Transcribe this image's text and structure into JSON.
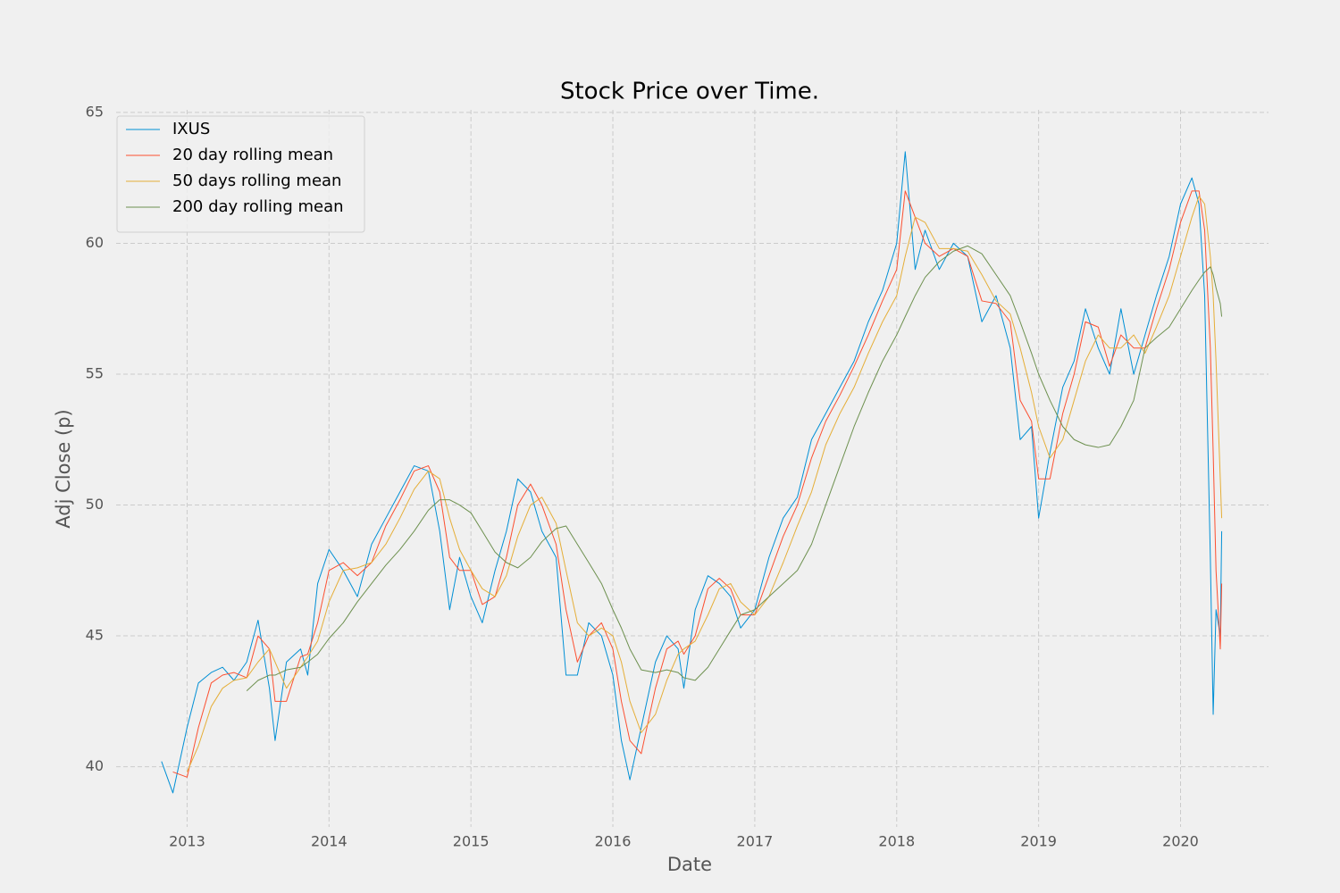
{
  "chart_data": {
    "type": "line",
    "title": "Stock Price over Time.",
    "x_label": "Date",
    "y_label": "Adj Close (p)",
    "x": [
      2012.82,
      2012.9,
      2013.0,
      2013.08,
      2013.17,
      2013.25,
      2013.33,
      2013.42,
      2013.5,
      2013.58,
      2013.62,
      2013.7,
      2013.8,
      2013.85,
      2013.92,
      2014.0,
      2014.1,
      2014.2,
      2014.3,
      2014.4,
      2014.5,
      2014.6,
      2014.7,
      2014.78,
      2014.85,
      2014.92,
      2015.0,
      2015.08,
      2015.17,
      2015.25,
      2015.33,
      2015.42,
      2015.5,
      2015.6,
      2015.67,
      2015.75,
      2015.83,
      2015.92,
      2016.0,
      2016.06,
      2016.12,
      2016.2,
      2016.3,
      2016.38,
      2016.46,
      2016.5,
      2016.58,
      2016.67,
      2016.75,
      2016.83,
      2016.9,
      2017.0,
      2017.1,
      2017.2,
      2017.3,
      2017.4,
      2017.5,
      2017.6,
      2017.7,
      2017.8,
      2017.9,
      2018.0,
      2018.06,
      2018.13,
      2018.2,
      2018.3,
      2018.4,
      2018.5,
      2018.6,
      2018.7,
      2018.8,
      2018.87,
      2018.95,
      2019.0,
      2019.08,
      2019.17,
      2019.25,
      2019.33,
      2019.42,
      2019.5,
      2019.58,
      2019.67,
      2019.75,
      2019.83,
      2019.92,
      2020.0,
      2020.08,
      2020.13,
      2020.17,
      2020.21,
      2020.23,
      2020.25,
      2020.28,
      2020.29
    ],
    "series": [
      {
        "name": "IXUS",
        "color": "#008fd5",
        "values": [
          40.2,
          39.0,
          41.5,
          43.2,
          43.6,
          43.8,
          43.3,
          44.0,
          45.6,
          43.0,
          41.0,
          44.0,
          44.5,
          43.5,
          47.0,
          48.3,
          47.5,
          46.5,
          48.5,
          49.5,
          50.5,
          51.5,
          51.3,
          49.0,
          46.0,
          48.0,
          46.5,
          45.5,
          47.5,
          49.0,
          51.0,
          50.5,
          49.0,
          48.0,
          43.5,
          43.5,
          45.5,
          45.0,
          43.5,
          41.0,
          39.5,
          41.5,
          44.0,
          45.0,
          44.5,
          43.0,
          46.0,
          47.3,
          47.0,
          46.5,
          45.3,
          46.0,
          48.0,
          49.5,
          50.3,
          52.5,
          53.5,
          54.5,
          55.5,
          57.0,
          58.2,
          60.0,
          63.5,
          59.0,
          60.5,
          59.0,
          60.0,
          59.5,
          57.0,
          58.0,
          56.0,
          52.5,
          53.0,
          49.5,
          52.0,
          54.5,
          55.5,
          57.5,
          56.0,
          55.0,
          57.5,
          55.0,
          56.5,
          58.0,
          59.5,
          61.5,
          62.5,
          61.5,
          58.0,
          48.0,
          42.0,
          46.0,
          45.0,
          49.0
        ]
      },
      {
        "name": "20 day rolling mean",
        "color": "#fc4f30",
        "values": [
          null,
          39.8,
          39.6,
          41.5,
          43.2,
          43.5,
          43.6,
          43.4,
          45.0,
          44.5,
          42.5,
          42.5,
          44.2,
          44.3,
          45.5,
          47.5,
          47.8,
          47.3,
          47.8,
          49.2,
          50.2,
          51.3,
          51.5,
          50.5,
          48.0,
          47.5,
          47.5,
          46.2,
          46.5,
          48.0,
          50.0,
          50.8,
          50.0,
          48.5,
          46.0,
          44.0,
          45.0,
          45.5,
          44.5,
          42.5,
          41.0,
          40.5,
          43.0,
          44.5,
          44.8,
          44.3,
          45.0,
          46.8,
          47.2,
          46.8,
          45.8,
          45.8,
          47.3,
          48.8,
          50.0,
          51.8,
          53.2,
          54.2,
          55.3,
          56.5,
          57.8,
          59.0,
          62.0,
          61.0,
          60.0,
          59.5,
          59.8,
          59.5,
          57.8,
          57.7,
          57.0,
          54.0,
          53.2,
          51.0,
          51.0,
          53.5,
          55.0,
          57.0,
          56.8,
          55.3,
          56.5,
          56.0,
          56.0,
          57.5,
          59.0,
          60.8,
          62.0,
          62.0,
          60.5,
          56.0,
          52.0,
          47.5,
          44.5,
          47.0
        ]
      },
      {
        "name": "50 days rolling mean",
        "color": "#e5ae38",
        "values": [
          null,
          null,
          39.8,
          40.8,
          42.3,
          43.0,
          43.3,
          43.4,
          44.0,
          44.5,
          44.0,
          43.0,
          43.8,
          44.2,
          44.8,
          46.3,
          47.5,
          47.6,
          47.8,
          48.5,
          49.5,
          50.6,
          51.3,
          51.0,
          49.5,
          48.3,
          47.5,
          46.8,
          46.5,
          47.3,
          48.8,
          50.0,
          50.3,
          49.3,
          47.5,
          45.5,
          45.0,
          45.3,
          45.0,
          44.0,
          42.5,
          41.3,
          42.0,
          43.3,
          44.3,
          44.5,
          44.8,
          45.8,
          46.8,
          47.0,
          46.3,
          45.8,
          46.5,
          47.8,
          49.2,
          50.5,
          52.3,
          53.5,
          54.5,
          55.8,
          57.0,
          58.0,
          59.5,
          61.0,
          60.8,
          59.8,
          59.8,
          59.7,
          58.8,
          57.8,
          57.3,
          56.0,
          54.3,
          53.0,
          51.8,
          52.5,
          54.0,
          55.5,
          56.5,
          56.0,
          56.0,
          56.5,
          55.8,
          56.8,
          58.0,
          59.5,
          61.0,
          61.8,
          61.5,
          59.5,
          58.0,
          55.5,
          51.0,
          49.5
        ]
      },
      {
        "name": "200 day rolling mean",
        "color": "#6d904f",
        "values": [
          null,
          null,
          null,
          null,
          null,
          null,
          null,
          42.9,
          43.3,
          43.5,
          43.5,
          43.7,
          43.8,
          44.0,
          44.3,
          44.9,
          45.5,
          46.3,
          47.0,
          47.7,
          48.3,
          49.0,
          49.8,
          50.2,
          50.2,
          50.0,
          49.7,
          49.0,
          48.2,
          47.8,
          47.6,
          48.0,
          48.6,
          49.1,
          49.2,
          48.5,
          47.8,
          47.0,
          46.0,
          45.3,
          44.5,
          43.7,
          43.6,
          43.7,
          43.6,
          43.4,
          43.3,
          43.8,
          44.5,
          45.2,
          45.8,
          46.0,
          46.5,
          47.0,
          47.5,
          48.5,
          50.0,
          51.5,
          53.0,
          54.3,
          55.5,
          56.5,
          57.2,
          58.0,
          58.7,
          59.3,
          59.7,
          59.9,
          59.6,
          58.8,
          58.0,
          57.0,
          55.8,
          55.0,
          54.0,
          53.0,
          52.5,
          52.3,
          52.2,
          52.3,
          53.0,
          54.0,
          56.0,
          56.4,
          56.8,
          57.5,
          58.2,
          58.6,
          58.9,
          59.1,
          58.8,
          58.3,
          57.7,
          57.2
        ]
      }
    ],
    "xlim": [
      2012.5,
      2020.62
    ],
    "xticks": [
      2013,
      2014,
      2015,
      2016,
      2017,
      2018,
      2019,
      2020
    ],
    "ylim": [
      37.7,
      65.1
    ],
    "yticks": [
      40,
      45,
      50,
      55,
      60,
      65
    ],
    "grid": true,
    "legend": "upper left"
  }
}
